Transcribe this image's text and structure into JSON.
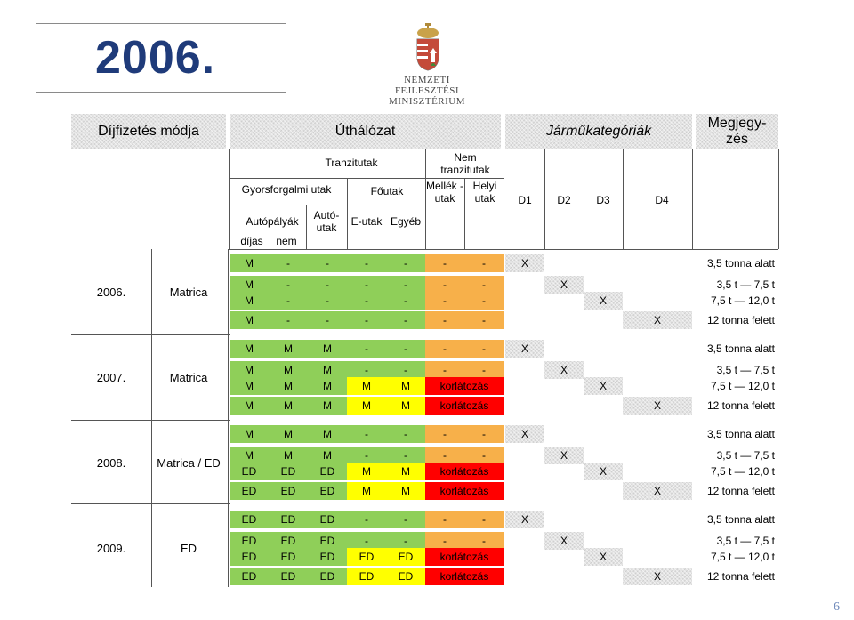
{
  "title": "2006.",
  "logo": {
    "line1": "NEMZETI FEJLESZTÉSI",
    "line2": "MINISZTÉRIUM"
  },
  "header": {
    "payment_mode": "Díjfizetés módja",
    "road_network": "Úthálózat",
    "vehicle_categories": "Járműkategóriák",
    "remarks": "Megjegy-zés",
    "transit_roads": "Tranzitutak",
    "expressways": "Gyorsforgalmi utak",
    "main_roads": "Főutak",
    "nontransit": "Nem tranzitutak",
    "motorways": "Autópályák",
    "autoutak": "Autó-utak",
    "e_roads": "E-utak",
    "other": "Egyéb",
    "secondary_roads": "Mellék -utak",
    "local_roads": "Helyi utak",
    "toll": "díjas",
    "no": "nem",
    "d1": "D1",
    "d2": "D2",
    "d3": "D3",
    "d4": "D4"
  },
  "years": [
    {
      "year": "2006.",
      "mode": "Matrica"
    },
    {
      "year": "2007.",
      "mode": "Matrica"
    },
    {
      "year": "2008.",
      "mode": "Matrica / ED"
    },
    {
      "year": "2009.",
      "mode": "ED"
    }
  ],
  "rows": [
    {
      "cells": [
        "M",
        "-",
        "-",
        "-",
        "-",
        "-",
        "-"
      ],
      "cat": "D1",
      "note": "3,5 tonna alatt"
    },
    {
      "cells": [
        "M",
        "-",
        "-",
        "-",
        "-",
        "-",
        "-"
      ],
      "cat": "D2",
      "note": "3,5 t — 7,5 t"
    },
    {
      "cells": [
        "M",
        "-",
        "-",
        "-",
        "-",
        "-",
        "-"
      ],
      "cat": "D3",
      "note": "7,5 t — 12,0 t"
    },
    {
      "cells": [
        "M",
        "-",
        "-",
        "-",
        "-",
        "-",
        "-"
      ],
      "cat": "D4",
      "note": "12 tonna felett"
    },
    {
      "cells": [
        "M",
        "M",
        "M",
        "-",
        "-",
        "-",
        "-"
      ],
      "cat": "D1",
      "note": "3,5 tonna alatt"
    },
    {
      "cells": [
        "M",
        "M",
        "M",
        "-",
        "-",
        "-",
        "-"
      ],
      "cat": "D2",
      "note": "3,5 t — 7,5 t"
    },
    {
      "cells": [
        "M",
        "M",
        "M",
        "M",
        "M",
        "korlátozás",
        ""
      ],
      "cat": "D3",
      "note": "7,5 t — 12,0 t"
    },
    {
      "cells": [
        "M",
        "M",
        "M",
        "M",
        "M",
        "korlátozás",
        ""
      ],
      "cat": "D4",
      "note": "12 tonna felett"
    },
    {
      "cells": [
        "M",
        "M",
        "M",
        "-",
        "-",
        "-",
        "-"
      ],
      "cat": "D1",
      "note": "3,5 tonna alatt"
    },
    {
      "cells": [
        "M",
        "M",
        "M",
        "-",
        "-",
        "-",
        "-"
      ],
      "cat": "D2",
      "note": "3,5 t — 7,5 t"
    },
    {
      "cells": [
        "ED",
        "ED",
        "ED",
        "M",
        "M",
        "korlátozás",
        ""
      ],
      "cat": "D3",
      "note": "7,5 t — 12,0 t"
    },
    {
      "cells": [
        "ED",
        "ED",
        "ED",
        "M",
        "M",
        "korlátozás",
        ""
      ],
      "cat": "D4",
      "note": "12 tonna felett"
    },
    {
      "cells": [
        "ED",
        "ED",
        "ED",
        "-",
        "-",
        "-",
        "-"
      ],
      "cat": "D1",
      "note": "3,5 tonna alatt"
    },
    {
      "cells": [
        "ED",
        "ED",
        "ED",
        "-",
        "-",
        "-",
        "-"
      ],
      "cat": "D2",
      "note": "3,5 t — 7,5 t"
    },
    {
      "cells": [
        "ED",
        "ED",
        "ED",
        "ED",
        "ED",
        "korlátozás",
        ""
      ],
      "cat": "D3",
      "note": "7,5 t — 12,0 t"
    },
    {
      "cells": [
        "ED",
        "ED",
        "ED",
        "ED",
        "ED",
        "korlátozás",
        ""
      ],
      "cat": "D4",
      "note": "12 tonna felett"
    }
  ],
  "mark": "X",
  "page_number": "6"
}
